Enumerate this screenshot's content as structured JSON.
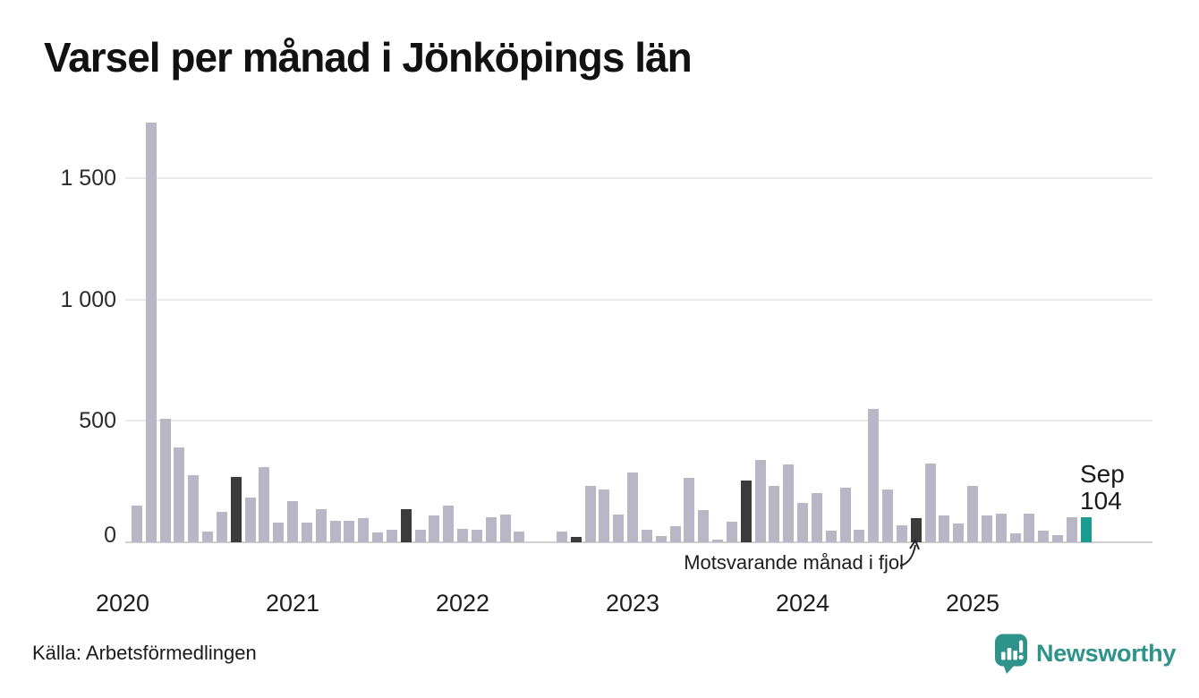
{
  "title": "Varsel per månad i Jönköpings län",
  "source": "Källa: Arbetsförmedlingen",
  "annotation": {
    "text": "Motsvarande månad i fjol"
  },
  "current_label": {
    "line1": "Sep",
    "line2": "104"
  },
  "logo": {
    "text": "Newsworthy"
  },
  "colors": {
    "bar_normal": "#b9b7c6",
    "bar_dark": "#3b3b3b",
    "bar_current": "#1a9c8f",
    "logo_teal": "#2e938a",
    "gridline": "#e9e9ec",
    "axis_line": "#cfcfd4",
    "text": "#1a1a1a"
  },
  "chart_data": {
    "type": "bar",
    "title": "Varsel per månad i Jönköpings län",
    "xlabel": "",
    "ylabel": "",
    "ylim": [
      0,
      1750
    ],
    "grid": true,
    "legend": "none",
    "yticks": [
      {
        "value": 0,
        "label": "0"
      },
      {
        "value": 500,
        "label": "500"
      },
      {
        "value": 1000,
        "label": "1 000"
      },
      {
        "value": 1500,
        "label": "1 500"
      }
    ],
    "year_labels": [
      "2020",
      "2021",
      "2022",
      "2023",
      "2024",
      "2025"
    ],
    "bar_types_legend": {
      "normal": "gray month bar",
      "dark": "September of previous years (Motsvarande månad i fjol)",
      "current": "latest month (Sep 2025, highlighted teal)"
    },
    "months": [
      {
        "m": "Jan 2020",
        "v": 0,
        "t": "zero"
      },
      {
        "m": "Feb 2020",
        "v": 150,
        "t": "normal"
      },
      {
        "m": "Mar 2020",
        "v": 1730,
        "t": "normal"
      },
      {
        "m": "Apr 2020",
        "v": 510,
        "t": "normal"
      },
      {
        "m": "May 2020",
        "v": 390,
        "t": "normal"
      },
      {
        "m": "Jun 2020",
        "v": 275,
        "t": "normal"
      },
      {
        "m": "Jul 2020",
        "v": 45,
        "t": "normal"
      },
      {
        "m": "Aug 2020",
        "v": 125,
        "t": "normal"
      },
      {
        "m": "Sep 2020",
        "v": 270,
        "t": "dark"
      },
      {
        "m": "Oct 2020",
        "v": 185,
        "t": "normal"
      },
      {
        "m": "Nov 2020",
        "v": 310,
        "t": "normal"
      },
      {
        "m": "Dec 2020",
        "v": 80,
        "t": "normal"
      },
      {
        "m": "Jan 2021",
        "v": 170,
        "t": "normal"
      },
      {
        "m": "Feb 2021",
        "v": 80,
        "t": "normal"
      },
      {
        "m": "Mar 2021",
        "v": 135,
        "t": "normal"
      },
      {
        "m": "Apr 2021",
        "v": 90,
        "t": "normal"
      },
      {
        "m": "May 2021",
        "v": 90,
        "t": "normal"
      },
      {
        "m": "Jun 2021",
        "v": 100,
        "t": "normal"
      },
      {
        "m": "Jul 2021",
        "v": 42,
        "t": "normal"
      },
      {
        "m": "Aug 2021",
        "v": 50,
        "t": "normal"
      },
      {
        "m": "Sep 2021",
        "v": 135,
        "t": "dark"
      },
      {
        "m": "Oct 2021",
        "v": 50,
        "t": "normal"
      },
      {
        "m": "Nov 2021",
        "v": 110,
        "t": "normal"
      },
      {
        "m": "Dec 2021",
        "v": 150,
        "t": "normal"
      },
      {
        "m": "Jan 2022",
        "v": 56,
        "t": "normal"
      },
      {
        "m": "Feb 2022",
        "v": 50,
        "t": "normal"
      },
      {
        "m": "Mar 2022",
        "v": 102,
        "t": "normal"
      },
      {
        "m": "Apr 2022",
        "v": 114,
        "t": "normal"
      },
      {
        "m": "May 2022",
        "v": 44,
        "t": "normal"
      },
      {
        "m": "Jun 2022",
        "v": 0,
        "t": "zero"
      },
      {
        "m": "Jul 2022",
        "v": 0,
        "t": "zero"
      },
      {
        "m": "Aug 2022",
        "v": 43,
        "t": "normal"
      },
      {
        "m": "Sep 2022",
        "v": 22,
        "t": "dark"
      },
      {
        "m": "Oct 2022",
        "v": 233,
        "t": "normal"
      },
      {
        "m": "Nov 2022",
        "v": 216,
        "t": "normal"
      },
      {
        "m": "Dec 2022",
        "v": 113,
        "t": "normal"
      },
      {
        "m": "Jan 2023",
        "v": 286,
        "t": "normal"
      },
      {
        "m": "Feb 2023",
        "v": 53,
        "t": "normal"
      },
      {
        "m": "Mar 2023",
        "v": 25,
        "t": "normal"
      },
      {
        "m": "Apr 2023",
        "v": 67,
        "t": "normal"
      },
      {
        "m": "May 2023",
        "v": 266,
        "t": "normal"
      },
      {
        "m": "Jun 2023",
        "v": 132,
        "t": "normal"
      },
      {
        "m": "Jul 2023",
        "v": 12,
        "t": "normal"
      },
      {
        "m": "Aug 2023",
        "v": 86,
        "t": "normal"
      },
      {
        "m": "Sep 2023",
        "v": 253,
        "t": "dark"
      },
      {
        "m": "Oct 2023",
        "v": 340,
        "t": "normal"
      },
      {
        "m": "Nov 2023",
        "v": 233,
        "t": "normal"
      },
      {
        "m": "Dec 2023",
        "v": 320,
        "t": "normal"
      },
      {
        "m": "Jan 2024",
        "v": 163,
        "t": "normal"
      },
      {
        "m": "Feb 2024",
        "v": 203,
        "t": "normal"
      },
      {
        "m": "Mar 2024",
        "v": 49,
        "t": "normal"
      },
      {
        "m": "Apr 2024",
        "v": 224,
        "t": "normal"
      },
      {
        "m": "May 2024",
        "v": 53,
        "t": "normal"
      },
      {
        "m": "Jun 2024",
        "v": 551,
        "t": "normal"
      },
      {
        "m": "Jul 2024",
        "v": 218,
        "t": "normal"
      },
      {
        "m": "Aug 2024",
        "v": 71,
        "t": "normal"
      },
      {
        "m": "Sep 2024",
        "v": 98,
        "t": "dark"
      },
      {
        "m": "Oct 2024",
        "v": 325,
        "t": "normal"
      },
      {
        "m": "Nov 2024",
        "v": 111,
        "t": "normal"
      },
      {
        "m": "Dec 2024",
        "v": 77,
        "t": "normal"
      },
      {
        "m": "Jan 2025",
        "v": 233,
        "t": "normal"
      },
      {
        "m": "Feb 2025",
        "v": 110,
        "t": "normal"
      },
      {
        "m": "Mar 2025",
        "v": 118,
        "t": "normal"
      },
      {
        "m": "Apr 2025",
        "v": 37,
        "t": "normal"
      },
      {
        "m": "May 2025",
        "v": 118,
        "t": "normal"
      },
      {
        "m": "Jun 2025",
        "v": 49,
        "t": "normal"
      },
      {
        "m": "Jul 2025",
        "v": 28,
        "t": "normal"
      },
      {
        "m": "Aug 2025",
        "v": 102,
        "t": "normal"
      },
      {
        "m": "Sep 2025",
        "v": 104,
        "t": "current"
      }
    ]
  }
}
